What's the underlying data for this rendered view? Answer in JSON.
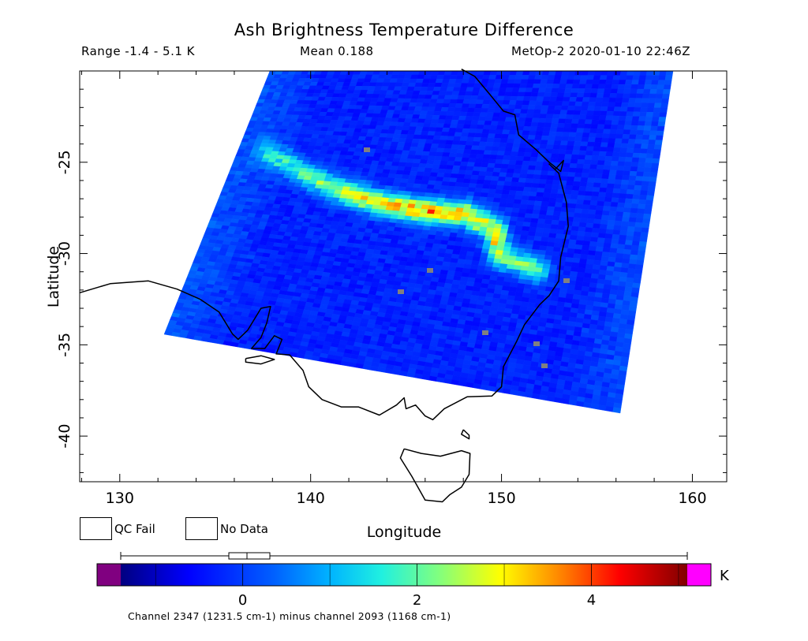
{
  "header": {
    "title": "Ash Brightness Temperature Difference",
    "range": "Range -1.4 - 5.1 K",
    "mean": "Mean 0.188",
    "satellite": "MetOp-2 2020-01-10 22:46Z"
  },
  "map": {
    "x_axis_label": "Longitude",
    "y_axis_label": "Latitude",
    "lon_ticks": [
      "130",
      "140",
      "150",
      "160"
    ],
    "lat_ticks": [
      "-25",
      "-30",
      "-35",
      "-40"
    ],
    "lon_range": [
      127.9,
      161.8
    ],
    "lat_range": [
      -42.5,
      -20.0
    ]
  },
  "legend": {
    "qc_fail_label": "QC Fail",
    "no_data_label": "No Data",
    "qc_fail_color": "#808080",
    "no_data_color": "#ffffff"
  },
  "colorbar": {
    "unit": "K",
    "ticks": [
      "0",
      "2",
      "4"
    ],
    "tick_values": [
      0,
      2,
      4
    ],
    "range": [
      -1.4,
      5.1
    ],
    "under_color": "#800080",
    "over_color": "#ff00ff"
  },
  "footer": {
    "channel_note": "Channel 2347 (1231.5 cm-1) minus channel 2093 (1168 cm-1)"
  }
}
